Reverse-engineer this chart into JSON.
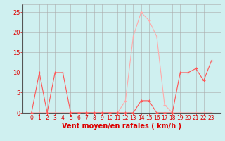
{
  "x_labels": [
    0,
    1,
    2,
    3,
    4,
    5,
    6,
    7,
    8,
    9,
    10,
    11,
    12,
    13,
    14,
    15,
    16,
    17,
    18,
    19,
    20,
    21,
    22,
    23
  ],
  "wind_avg": [
    0,
    10,
    0,
    10,
    10,
    0,
    0,
    0,
    0,
    0,
    0,
    0,
    0,
    0,
    3,
    3,
    0,
    0,
    0,
    10,
    10,
    11,
    8,
    13
  ],
  "wind_gust": [
    0,
    0,
    0,
    0,
    0,
    0,
    0,
    0,
    0,
    0,
    0,
    0,
    3,
    19,
    25,
    23,
    19,
    2,
    0,
    0,
    0,
    0,
    0,
    0
  ],
  "wind_avg_color": "#ff5555",
  "wind_gust_color": "#ffaaaa",
  "bg_color": "#cff0f0",
  "grid_color": "#aaaaaa",
  "axis_color": "#dd0000",
  "spine_color": "#555555",
  "xlabel": "Vent moyen/en rafales ( km/h )",
  "ylim": [
    0,
    27
  ],
  "yticks": [
    0,
    5,
    10,
    15,
    20,
    25
  ],
  "xlabel_fontsize": 7,
  "tick_fontsize": 5.5
}
